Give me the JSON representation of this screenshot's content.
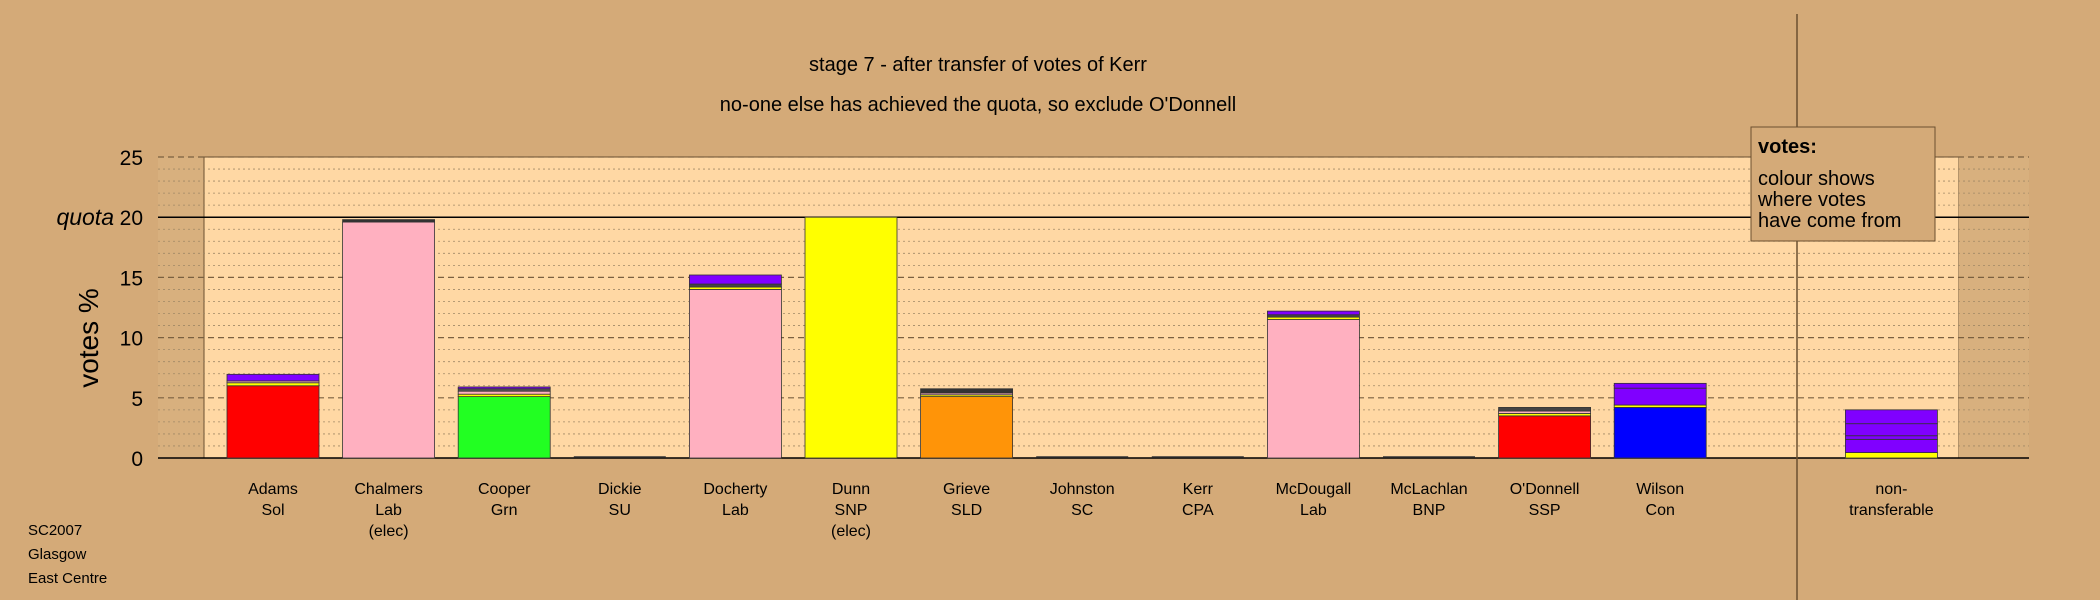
{
  "colors": {
    "background": "#d4aa78",
    "plot_background": "#ffd8a4",
    "quota_line": "#000000"
  },
  "chart_data": {
    "type": "bar",
    "stacked": true,
    "title": "stage 7 - after transfer of votes of Kerr",
    "subtitle": "no-one else has achieved the quota, so exclude O'Donnell",
    "ylabel": "votes %",
    "ylim": [
      0,
      25
    ],
    "yticks": [
      "0",
      "5",
      "10",
      "15",
      "20",
      "25"
    ],
    "quota_label": "quota",
    "quota_value": 20,
    "grid": true,
    "legend_placement": "top-right",
    "legend": {
      "title": "votes:",
      "lines": [
        "colour shows",
        "where votes",
        "have come from"
      ]
    },
    "categories": [
      {
        "lines": [
          "Adams",
          "Sol"
        ],
        "segments": [
          {
            "value": 6.0,
            "color": "#ff0000"
          },
          {
            "value": 0.25,
            "color": "#ffff00"
          },
          {
            "value": 0.15,
            "color": "#ffb0c0"
          },
          {
            "value": 0.55,
            "color": "#8000ff"
          }
        ]
      },
      {
        "lines": [
          "Chalmers",
          "Lab",
          "(elec)"
        ],
        "segments": [
          {
            "value": 19.6,
            "color": "#ffb0c0"
          },
          {
            "value": 0.2,
            "color": "#333333"
          }
        ]
      },
      {
        "lines": [
          "Cooper",
          "Grn"
        ],
        "segments": [
          {
            "value": 5.1,
            "color": "#22ff22"
          },
          {
            "value": 0.2,
            "color": "#ffff00"
          },
          {
            "value": 0.25,
            "color": "#ffb0c0"
          },
          {
            "value": 0.2,
            "color": "#555555"
          },
          {
            "value": 0.15,
            "color": "#8000ff"
          }
        ]
      },
      {
        "lines": [
          "Dickie",
          "SU"
        ],
        "segments": []
      },
      {
        "lines": [
          "Docherty",
          "Lab"
        ],
        "segments": [
          {
            "value": 14.0,
            "color": "#ffb0c0"
          },
          {
            "value": 0.2,
            "color": "#ffff00"
          },
          {
            "value": 0.25,
            "color": "#444444"
          },
          {
            "value": 0.75,
            "color": "#8000ff"
          }
        ]
      },
      {
        "lines": [
          "Dunn",
          "SNP",
          "(elec)"
        ],
        "segments": [
          {
            "value": 20.0,
            "color": "#ffff00"
          }
        ]
      },
      {
        "lines": [
          "Grieve",
          "SLD"
        ],
        "segments": [
          {
            "value": 5.1,
            "color": "#ff9408"
          },
          {
            "value": 0.15,
            "color": "#ffff00"
          },
          {
            "value": 0.15,
            "color": "#ffb0c0"
          },
          {
            "value": 0.35,
            "color": "#333333"
          }
        ]
      },
      {
        "lines": [
          "Johnston",
          "SC"
        ],
        "segments": []
      },
      {
        "lines": [
          "Kerr",
          "CPA"
        ],
        "segments": []
      },
      {
        "lines": [
          "McDougall",
          "Lab"
        ],
        "segments": [
          {
            "value": 11.5,
            "color": "#ffb0c0"
          },
          {
            "value": 0.2,
            "color": "#ffff00"
          },
          {
            "value": 0.2,
            "color": "#444444"
          },
          {
            "value": 0.3,
            "color": "#8000ff"
          }
        ]
      },
      {
        "lines": [
          "McLachlan",
          "BNP"
        ],
        "segments": []
      },
      {
        "lines": [
          "O'Donnell",
          "SSP"
        ],
        "segments": [
          {
            "value": 3.5,
            "color": "#ff0000"
          },
          {
            "value": 0.2,
            "color": "#ffff00"
          },
          {
            "value": 0.2,
            "color": "#ffb0c0"
          },
          {
            "value": 0.3,
            "color": "#444444"
          }
        ]
      },
      {
        "lines": [
          "Wilson",
          "Con"
        ],
        "segments": [
          {
            "value": 4.2,
            "color": "#0000ff"
          },
          {
            "value": 0.2,
            "color": "#ffff00"
          },
          {
            "value": 1.4,
            "color": "#8000ff"
          },
          {
            "value": 0.4,
            "color": "#8000ff"
          }
        ]
      },
      {
        "lines": [
          "",
          ""
        ],
        "spacer": true,
        "segments": []
      },
      {
        "lines": [
          "non-",
          "transferable"
        ],
        "segments": [
          {
            "value": 0.45,
            "color": "#ffff00"
          },
          {
            "value": 1.1,
            "color": "#8000ff"
          },
          {
            "value": 0.3,
            "color": "#8000ff"
          },
          {
            "value": 1.0,
            "color": "#8000ff"
          },
          {
            "value": 1.15,
            "color": "#8000ff"
          }
        ]
      }
    ]
  },
  "footer": {
    "line1": "SC2007",
    "line2": "Glasgow",
    "line3": "East Centre"
  }
}
